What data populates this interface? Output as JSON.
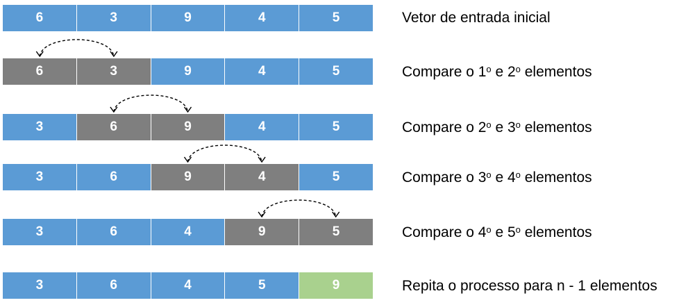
{
  "colors": {
    "unsorted": "#5b9bd5",
    "compared": "#7f7f7f",
    "sorted": "#a9d18e"
  },
  "rows": [
    {
      "values": [
        "6",
        "3",
        "9",
        "4",
        "5"
      ],
      "states": [
        "blue",
        "blue",
        "blue",
        "blue",
        "blue"
      ],
      "label_parts": [
        {
          "t": "Vetor de entrada inicial",
          "s": false
        }
      ]
    },
    {
      "values": [
        "6",
        "3",
        "9",
        "4",
        "5"
      ],
      "states": [
        "gray",
        "gray",
        "blue",
        "blue",
        "blue"
      ],
      "label_parts": [
        {
          "t": "Compare o 1",
          "s": false
        },
        {
          "t": "o",
          "s": true
        },
        {
          "t": " e 2",
          "s": false
        },
        {
          "t": "o",
          "s": true
        },
        {
          "t": " elementos",
          "s": false
        }
      ]
    },
    {
      "values": [
        "3",
        "6",
        "9",
        "4",
        "5"
      ],
      "states": [
        "blue",
        "gray",
        "gray",
        "blue",
        "blue"
      ],
      "label_parts": [
        {
          "t": "Compare o 2",
          "s": false
        },
        {
          "t": "o",
          "s": true
        },
        {
          "t": " e 3",
          "s": false
        },
        {
          "t": "o",
          "s": true
        },
        {
          "t": " elementos",
          "s": false
        }
      ]
    },
    {
      "values": [
        "3",
        "6",
        "9",
        "4",
        "5"
      ],
      "states": [
        "blue",
        "blue",
        "gray",
        "gray",
        "blue"
      ],
      "label_parts": [
        {
          "t": "Compare o 3",
          "s": false
        },
        {
          "t": "o",
          "s": true
        },
        {
          "t": " e 4",
          "s": false
        },
        {
          "t": "o",
          "s": true
        },
        {
          "t": " elementos",
          "s": false
        }
      ]
    },
    {
      "values": [
        "3",
        "6",
        "4",
        "9",
        "5"
      ],
      "states": [
        "blue",
        "blue",
        "blue",
        "gray",
        "gray"
      ],
      "label_parts": [
        {
          "t": "Compare o 4",
          "s": false
        },
        {
          "t": "o",
          "s": true
        },
        {
          "t": " e 5",
          "s": false
        },
        {
          "t": "o",
          "s": true
        },
        {
          "t": " elementos",
          "s": false
        }
      ]
    },
    {
      "values": [
        "3",
        "6",
        "4",
        "5",
        "9"
      ],
      "states": [
        "blue",
        "blue",
        "blue",
        "blue",
        "green"
      ],
      "label_parts": [
        {
          "t": "Repita o processo para n - 1 elementos",
          "s": false
        }
      ]
    }
  ],
  "arcs": [
    {
      "row": 1,
      "from": 0,
      "to": 1
    },
    {
      "row": 2,
      "from": 1,
      "to": 2
    },
    {
      "row": 3,
      "from": 2,
      "to": 3
    },
    {
      "row": 4,
      "from": 3,
      "to": 4
    }
  ]
}
